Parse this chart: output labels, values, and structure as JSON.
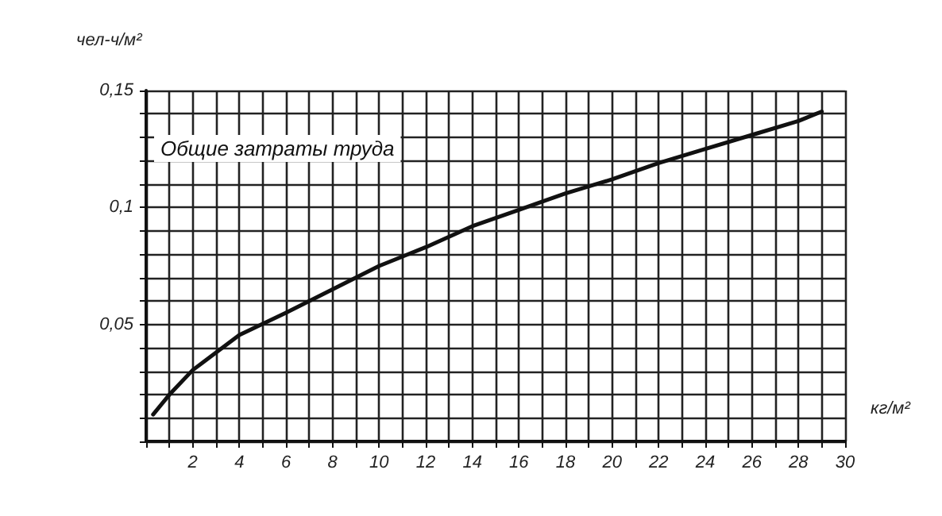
{
  "chart_data": {
    "type": "line",
    "title": "Общие затраты труда",
    "xlabel": "кг/м²",
    "ylabel": "чел-ч/м²",
    "series": [
      {
        "color": "#111111",
        "x": [
          0.3,
          1,
          2,
          4,
          6,
          8,
          10,
          12,
          14,
          16,
          18,
          20,
          22,
          24,
          26,
          28,
          29
        ],
        "values": [
          0.0115,
          0.02,
          0.0305,
          0.0455,
          0.055,
          0.065,
          0.075,
          0.083,
          0.092,
          0.099,
          0.106,
          0.112,
          0.119,
          0.125,
          0.131,
          0.137,
          0.141
        ]
      }
    ],
    "xlim": [
      0,
      30
    ],
    "ylim": [
      0,
      0.15
    ],
    "xticks": [
      {
        "value": 0,
        "label": null
      },
      {
        "value": 1,
        "label": null
      },
      2,
      {
        "value": 3,
        "label": null
      },
      4,
      {
        "value": 5,
        "label": null
      },
      6,
      {
        "value": 7,
        "label": null
      },
      8,
      {
        "value": 9,
        "label": null
      },
      10,
      {
        "value": 11,
        "label": null
      },
      12,
      {
        "value": 13,
        "label": null
      },
      14,
      {
        "value": 15,
        "label": null
      },
      16,
      {
        "value": 17,
        "label": null
      },
      18,
      {
        "value": 19,
        "label": null
      },
      20,
      {
        "value": 21,
        "label": null
      },
      22,
      {
        "value": 23,
        "label": null
      },
      24,
      {
        "value": 25,
        "label": null
      },
      26,
      {
        "value": 27,
        "label": null
      },
      28,
      {
        "value": 29,
        "label": null
      },
      30
    ],
    "yticks": [
      {
        "value": 0,
        "label": null
      },
      {
        "value": 0.01,
        "label": null
      },
      {
        "value": 0.02,
        "label": null
      },
      {
        "value": 0.03,
        "label": null
      },
      {
        "value": 0.04,
        "label": null
      },
      {
        "value": 0.05,
        "label": "0,05"
      },
      {
        "value": 0.06,
        "label": null
      },
      {
        "value": 0.07,
        "label": null
      },
      {
        "value": 0.08,
        "label": null
      },
      {
        "value": 0.09,
        "label": null
      },
      {
        "value": 0.1,
        "label": "0,1"
      },
      {
        "value": 0.11,
        "label": null
      },
      {
        "value": 0.12,
        "label": null
      },
      {
        "value": 0.13,
        "label": null
      },
      {
        "value": 0.14,
        "label": null
      },
      {
        "value": 0.15,
        "label": "0,15"
      }
    ],
    "grid": true,
    "marker": "none",
    "line_style": "solid"
  }
}
